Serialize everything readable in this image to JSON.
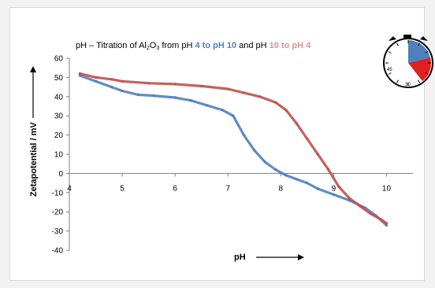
{
  "chart_data": {
    "type": "line",
    "title_parts": {
      "prefix": "pH – Titration of Al",
      "sub1": "2",
      "mid": "O",
      "sub2": "3",
      "from": " from pH ",
      "blue_range": "4 to pH 10",
      "and": " and pH ",
      "red_range": "10  to pH 4"
    },
    "xlabel": "pH",
    "ylabel": "Zetapotential / mV",
    "xlim": [
      4,
      10.5
    ],
    "ylim": [
      -40,
      60
    ],
    "xticks": [
      4,
      5,
      6,
      7,
      8,
      9,
      10
    ],
    "yticks": [
      60,
      50,
      40,
      30,
      20,
      10,
      0,
      -10,
      -20,
      -30,
      -40
    ],
    "grid": false,
    "series": [
      {
        "color": "#4f81bd",
        "x": [
          4.2,
          4.5,
          4.8,
          5.0,
          5.3,
          5.6,
          6.0,
          6.3,
          6.6,
          6.9,
          7.1,
          7.3,
          7.5,
          7.7,
          7.9,
          8.1,
          8.3,
          8.5,
          8.7,
          9.0,
          9.3,
          9.6,
          9.8,
          10.0
        ],
        "y": [
          51,
          48,
          45,
          43,
          41,
          40.5,
          39.5,
          38,
          35.5,
          33,
          30,
          20,
          12,
          6,
          2,
          -1,
          -3,
          -5,
          -8,
          -11,
          -14,
          -18,
          -22,
          -27
        ]
      },
      {
        "color": "#c0504d",
        "x": [
          4.2,
          4.5,
          4.8,
          5.0,
          5.5,
          6.0,
          6.5,
          7.0,
          7.3,
          7.6,
          7.9,
          8.1,
          8.3,
          8.5,
          8.7,
          8.9,
          9.1,
          9.3,
          9.5,
          9.7,
          9.9,
          10.0
        ],
        "y": [
          52,
          50,
          49,
          48,
          47,
          46.5,
          45.5,
          44,
          42,
          40,
          37,
          33,
          26,
          18,
          10,
          2,
          -7,
          -13,
          -17,
          -21,
          -24,
          -26
        ]
      }
    ]
  },
  "timer": {
    "labels": [
      "45",
      "30"
    ],
    "blue_color": "#4f81bd",
    "red_color": "#e02020"
  }
}
